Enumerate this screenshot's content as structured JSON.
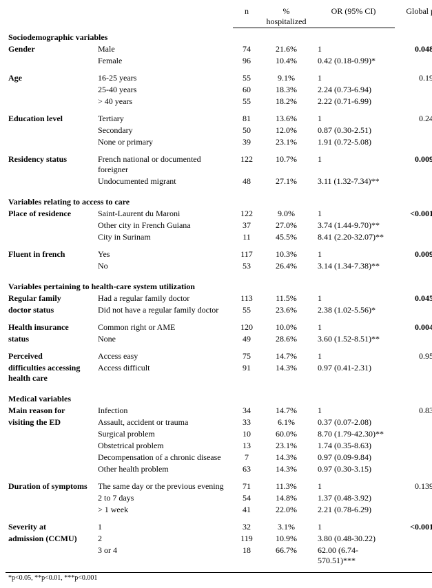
{
  "header": {
    "n": "n",
    "pct": "% hospitalized",
    "or": "OR (95% CI)",
    "p": "Global p"
  },
  "footnote": "*p<0.05, **p<0.01, ***p<0.001",
  "sections": [
    {
      "title": "Sociodemographic variables",
      "groups": [
        {
          "label": "Gender",
          "p": "0.048",
          "p_bold": true,
          "rows": [
            {
              "cat": "Male",
              "n": "74",
              "pct": "21.6%",
              "or": "1"
            },
            {
              "cat": "Female",
              "n": "96",
              "pct": "10.4%",
              "or": "0.42 (0.18-0.99)*"
            }
          ]
        },
        {
          "label": "Age",
          "p": "0.19",
          "rows": [
            {
              "cat": "16-25 years",
              "n": "55",
              "pct": "9.1%",
              "or": "1"
            },
            {
              "cat": "25-40 years",
              "n": "60",
              "pct": "18.3%",
              "or": "2.24 (0.73-6.94)"
            },
            {
              "cat": "> 40 years",
              "n": "55",
              "pct": "18.2%",
              "or": "2.22 (0.71-6.99)"
            }
          ]
        },
        {
          "label": "Education level",
          "p": "0.24",
          "rows": [
            {
              "cat": "Tertiary",
              "n": "81",
              "pct": "13.6%",
              "or": "1"
            },
            {
              "cat": "Secondary",
              "n": "50",
              "pct": "12.0%",
              "or": "0.87 (0.30-2.51)"
            },
            {
              "cat": "None or primary",
              "n": "39",
              "pct": "23.1%",
              "or": "1.91 (0.72-5.08)"
            }
          ]
        },
        {
          "label": "Residency status",
          "p": "0.009",
          "p_bold": true,
          "rows": [
            {
              "cat": "French national or documented foreigner",
              "n": "122",
              "pct": "10.7%",
              "or": "1"
            },
            {
              "cat": "Undocumented migrant",
              "n": "48",
              "pct": "27.1%",
              "or": "3.11 (1.32-7.34)**"
            }
          ]
        }
      ]
    },
    {
      "title": "Variables relating to access to care",
      "groups": [
        {
          "label": "Place of residence",
          "p": "<0.001",
          "p_bold": true,
          "rows": [
            {
              "cat": "Saint-Laurent du Maroni",
              "n": "122",
              "pct": "9.0%",
              "or": "1"
            },
            {
              "cat": "Other city in French Guiana",
              "n": "37",
              "pct": "27.0%",
              "or": "3.74 (1.44-9.70)**"
            },
            {
              "cat": "City in Surinam",
              "n": "11",
              "pct": "45.5%",
              "or": "8.41 (2.20-32.07)**"
            }
          ]
        },
        {
          "label": "Fluent in french",
          "p": "0.009",
          "p_bold": true,
          "rows": [
            {
              "cat": "Yes",
              "n": "117",
              "pct": "10.3%",
              "or": "1"
            },
            {
              "cat": "No",
              "n": "53",
              "pct": "26.4%",
              "or": "3.14 (1.34-7.38)**"
            }
          ]
        }
      ]
    },
    {
      "title": "Variables pertaining to health-care system utilization",
      "groups": [
        {
          "label": "Regular family doctor status",
          "p": "0.045",
          "p_bold": true,
          "rows": [
            {
              "cat": "Had a regular family doctor",
              "n": "113",
              "pct": "11.5%",
              "or": "1"
            },
            {
              "cat": "Did not have a regular family doctor",
              "n": "55",
              "pct": "23.6%",
              "or": "2.38 (1.02-5.56)*"
            }
          ]
        },
        {
          "label": "Health insurance status",
          "p": "0.004",
          "p_bold": true,
          "rows": [
            {
              "cat": "Common right or AME",
              "n": "120",
              "pct": "10.0%",
              "or": "1"
            },
            {
              "cat": "None",
              "n": "49",
              "pct": "28.6%",
              "or": "3.60 (1.52-8.51)**"
            }
          ]
        },
        {
          "label": "Perceived difficulties accessing health care",
          "p": "0.95",
          "rows": [
            {
              "cat": "Access easy",
              "n": "75",
              "pct": "14.7%",
              "or": "1"
            },
            {
              "cat": "Access difficult",
              "n": "91",
              "pct": "14.3%",
              "or": "0.97 (0.41-2.31)"
            }
          ]
        }
      ]
    },
    {
      "title": "Medical variables",
      "groups": [
        {
          "label": "Main reason for visiting the ED",
          "p": "0.83",
          "rows": [
            {
              "cat": "Infection",
              "n": "34",
              "pct": "14.7%",
              "or": "1"
            },
            {
              "cat": "Assault, accident or trauma",
              "n": "33",
              "pct": "6.1%",
              "or": "0.37 (0.07-2.08)"
            },
            {
              "cat": "Surgical problem",
              "n": "10",
              "pct": "60.0%",
              "or": "8.70 (1.79-42.30)**"
            },
            {
              "cat": "Obstetrical problem",
              "n": "13",
              "pct": "23.1%",
              "or": "1.74 (0.35-8.63)"
            },
            {
              "cat": "Decompensation of a chronic disease",
              "n": "7",
              "pct": "14.3%",
              "or": "0.97 (0.09-9.84)"
            },
            {
              "cat": "Other health problem",
              "n": "63",
              "pct": "14.3%",
              "or": "0.97 (0.30-3.15)"
            }
          ]
        },
        {
          "label": "Duration of symptoms",
          "p": "0.139",
          "rows": [
            {
              "cat": "The same day or the previous evening",
              "n": "71",
              "pct": "11.3%",
              "or": "1"
            },
            {
              "cat": "2 to 7 days",
              "n": "54",
              "pct": "14.8%",
              "or": "1.37 (0.48-3.92)"
            },
            {
              "cat": "> 1 week",
              "n": "41",
              "pct": "22.0%",
              "or": "2.21 (0.78-6.29)"
            }
          ]
        },
        {
          "label": "Severity at admission (CCMU)",
          "p": "<0.001",
          "p_bold": true,
          "rows": [
            {
              "cat": "1",
              "n": "32",
              "pct": "3.1%",
              "or": "1"
            },
            {
              "cat": "2",
              "n": "119",
              "pct": "10.9%",
              "or": "3.80 (0.48-30.22)"
            },
            {
              "cat": "3 or 4",
              "n": "18",
              "pct": "66.7%",
              "or": "62.00 (6.74-570.51)***"
            }
          ]
        }
      ]
    }
  ]
}
